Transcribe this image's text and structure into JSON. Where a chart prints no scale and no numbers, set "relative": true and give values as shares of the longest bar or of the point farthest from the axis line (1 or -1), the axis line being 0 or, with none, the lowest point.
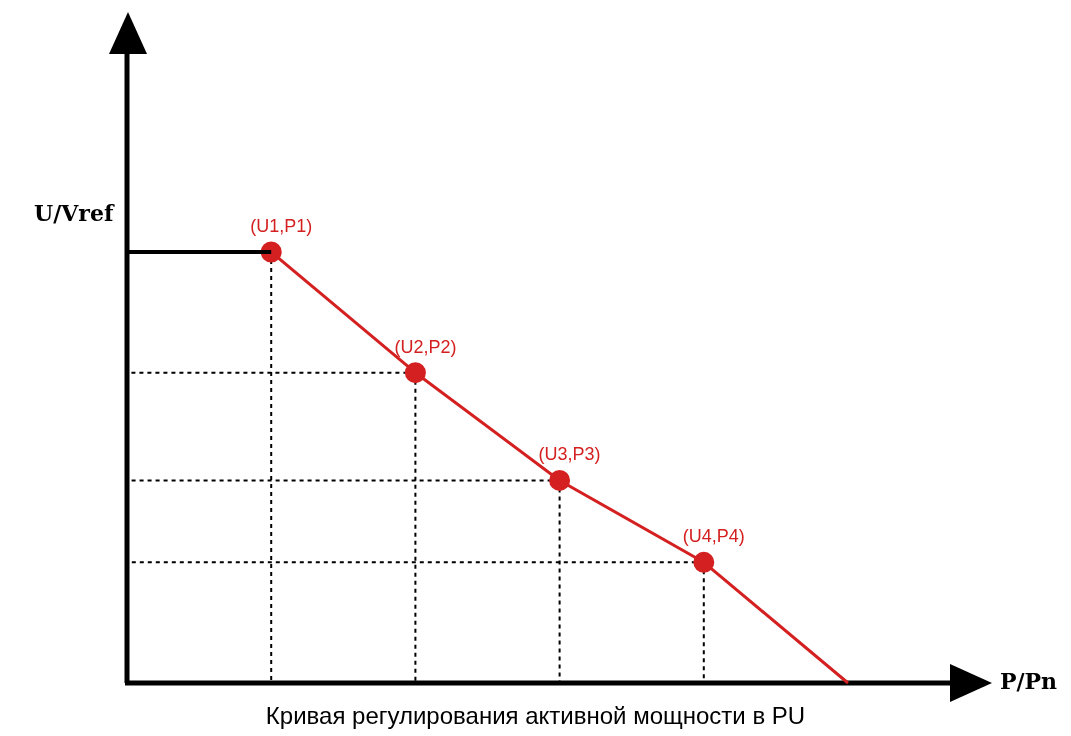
{
  "chart_data": {
    "type": "line",
    "relative": true,
    "title": "Кривая регулирования активной мощности в PU",
    "xlabel": "P/Pn",
    "ylabel": "U/Vref",
    "legend": false,
    "categories": [
      null,
      null,
      null,
      null,
      null,
      null
    ],
    "series": [
      {
        "color": "#000000",
        "values": [
          1,
          1,
          null,
          null,
          null,
          null
        ],
        "marker": "none"
      },
      {
        "color": "#d42020",
        "values": [
          null,
          1,
          0.72,
          0.47,
          0.28,
          0
        ],
        "marker": "circle"
      }
    ],
    "annotations": [
      {
        "text": "(U1,P1)",
        "y": 1
      },
      {
        "text": "(U2,P2)",
        "y": 0.72
      },
      {
        "text": "(U3,P3)",
        "y": 0.47
      },
      {
        "text": "(U4,P4)",
        "y": 0.28
      }
    ]
  }
}
